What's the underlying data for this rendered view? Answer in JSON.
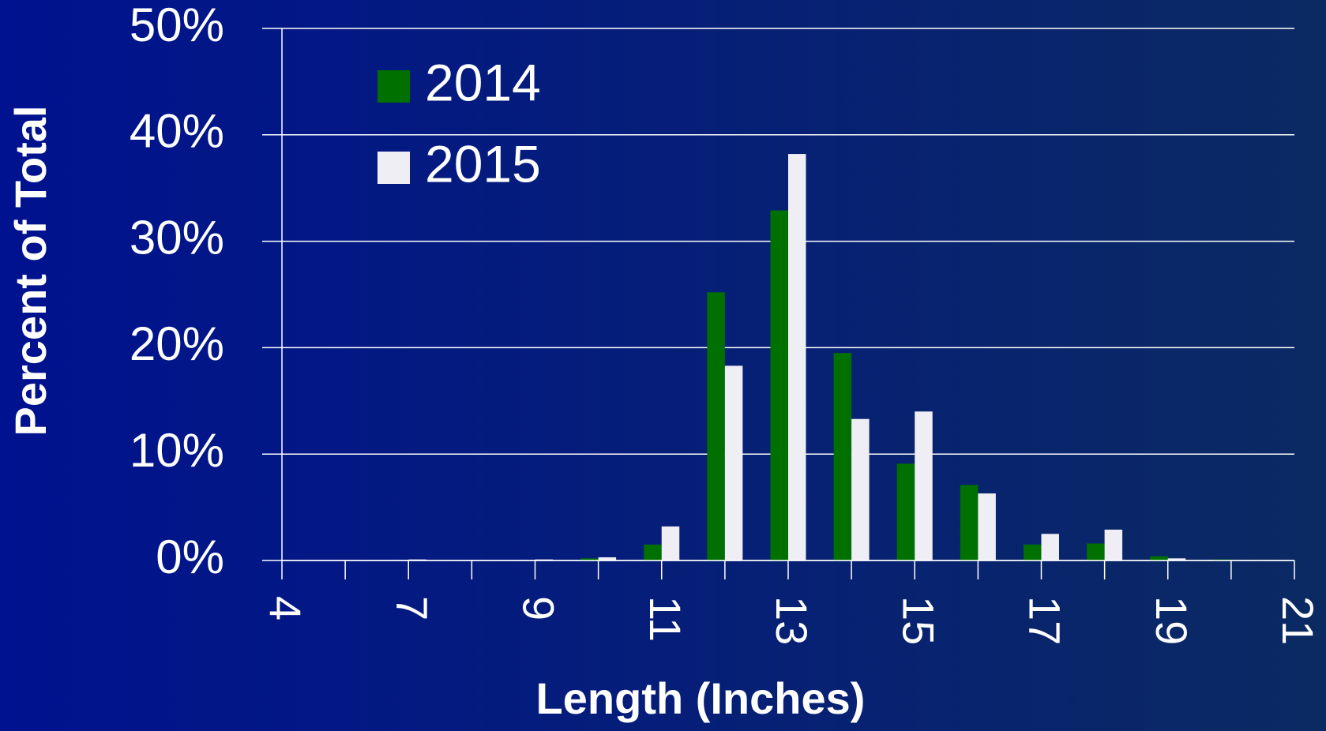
{
  "chart_data": {
    "type": "bar",
    "x_label": "Length (Inches)",
    "y_label": "Percent of Total",
    "categories": [
      "4",
      null,
      "7",
      null,
      "9",
      null,
      "11",
      null,
      "13",
      null,
      "15",
      null,
      "17",
      null,
      "19",
      null,
      "21"
    ],
    "series": [
      {
        "name": "2014",
        "color": "#007000",
        "values": [
          0,
          0,
          0,
          0,
          0,
          0.2,
          1.5,
          25.2,
          32.9,
          19.5,
          9.1,
          7.1,
          1.5,
          1.6,
          0.4,
          0.1,
          0
        ]
      },
      {
        "name": "2015",
        "color": "#f0eef5",
        "values": [
          0,
          0,
          0.1,
          0,
          0.1,
          0.3,
          3.2,
          18.3,
          38.2,
          13.3,
          14.0,
          6.3,
          2.5,
          2.9,
          0.2,
          0,
          0
        ]
      }
    ],
    "ylim": [
      0,
      50
    ],
    "yticks": [
      {
        "value": 0,
        "label": "0%"
      },
      {
        "value": 10,
        "label": "10%"
      },
      {
        "value": 20,
        "label": "20%"
      },
      {
        "value": 30,
        "label": "30%"
      },
      {
        "value": 40,
        "label": "40%"
      },
      {
        "value": 50,
        "label": "50%"
      }
    ],
    "grid": true,
    "legend": "upper left"
  }
}
